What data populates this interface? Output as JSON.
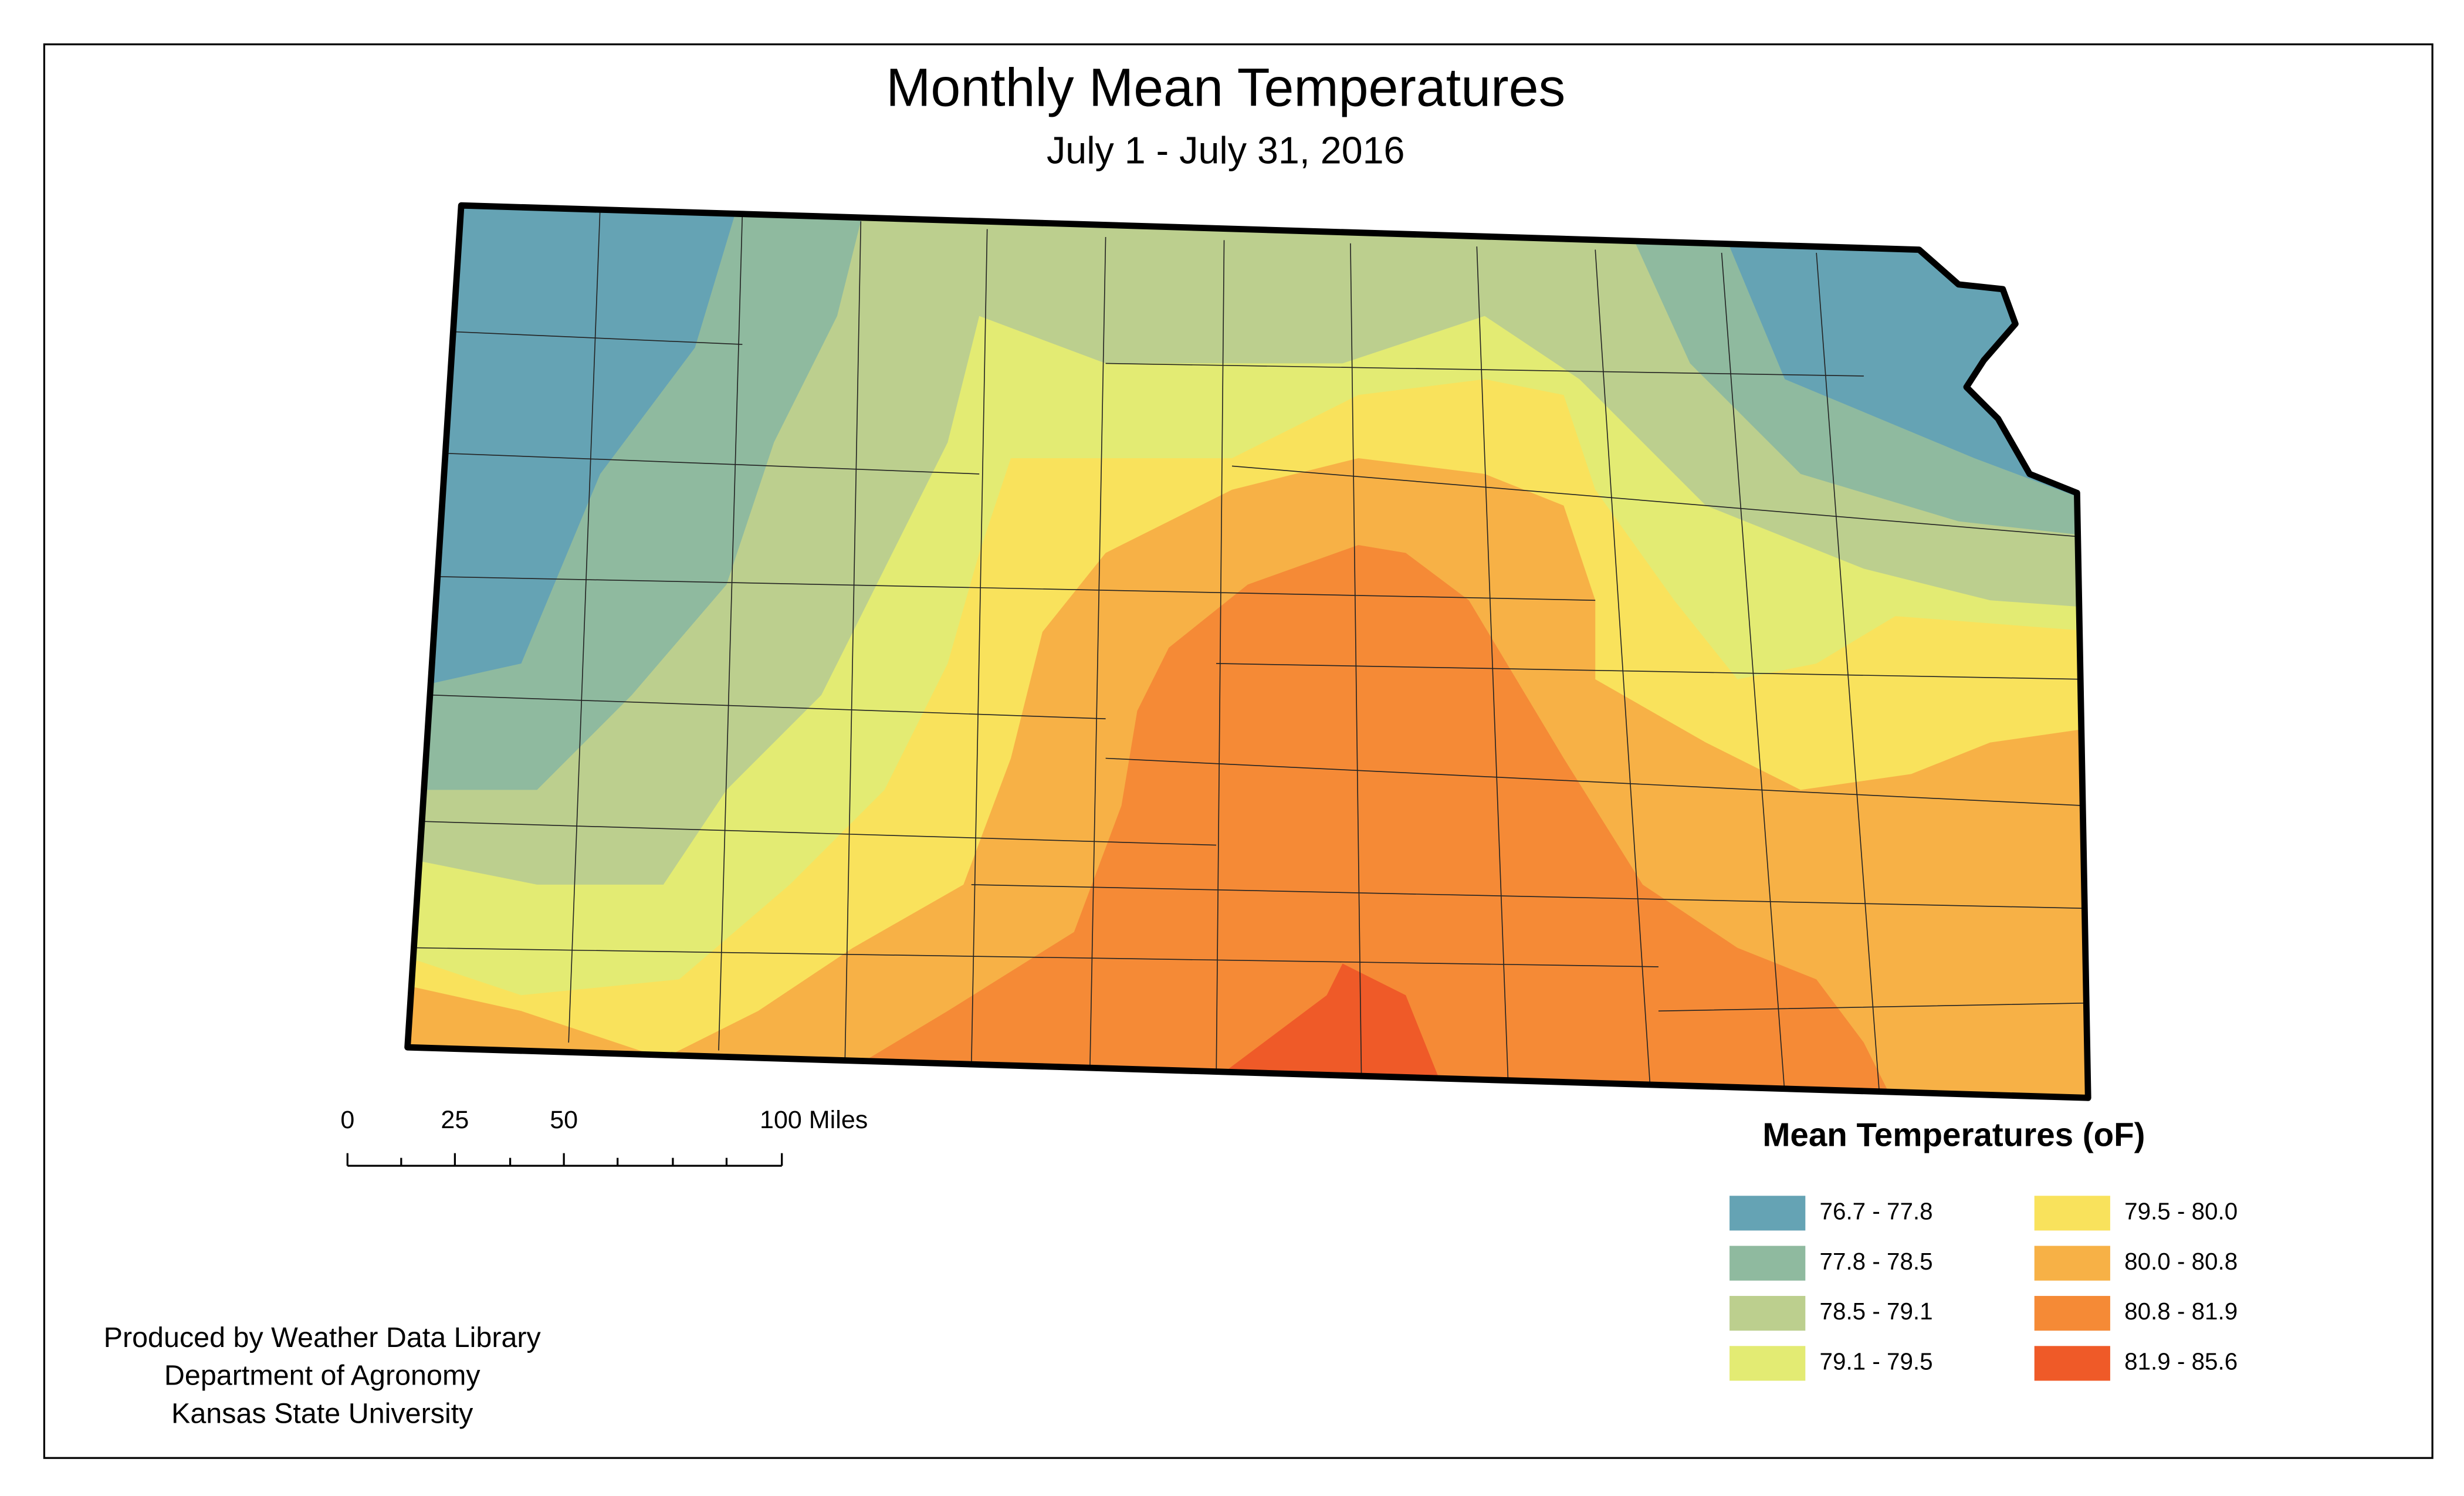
{
  "header": {
    "title": "Monthly Mean Temperatures",
    "subtitle": "July 1 - July 31, 2016"
  },
  "scale_bar": {
    "labels": [
      "0",
      "25",
      "50",
      "100 Miles"
    ]
  },
  "legend": {
    "title": "Mean Temperatures (oF)",
    "items": [
      {
        "label": "76.7 - 77.8",
        "color": "#65a3b4"
      },
      {
        "label": "77.8 - 78.5",
        "color": "#8fba9f"
      },
      {
        "label": "78.5 - 79.1",
        "color": "#bccf8e"
      },
      {
        "label": "79.1 - 79.5",
        "color": "#e3eb73"
      },
      {
        "label": "79.5 - 80.0",
        "color": "#f9e25c"
      },
      {
        "label": "80.0 - 80.8",
        "color": "#f7b146"
      },
      {
        "label": "80.8 - 81.9",
        "color": "#f58a36"
      },
      {
        "label": "81.9 - 85.6",
        "color": "#ef5a28"
      }
    ]
  },
  "credits": [
    "Produced by Weather Data Library",
    "Department of Agronomy",
    "Kansas State University"
  ]
}
